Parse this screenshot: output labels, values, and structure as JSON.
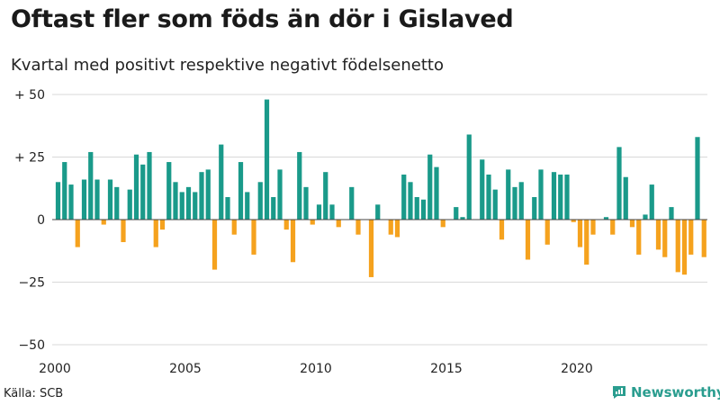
{
  "title": "Oftast fler som föds än dör i Gislaved",
  "subtitle": "Kvartal med positivt respektive negativt födelsenetto",
  "source": "Källa: SCB",
  "brand": "Newsworthy",
  "colors": {
    "positive": "#1a9a8a",
    "negative": "#f5a21e",
    "grid": "#d9d9d9",
    "baseline": "#444444"
  },
  "chart_data": {
    "type": "bar",
    "title": "Oftast fler som föds än dör i Gislaved",
    "subtitle": "Kvartal med positivt respektive negativt födelsenetto",
    "xlabel": "",
    "ylabel": "",
    "ylim": [
      -50,
      50
    ],
    "yticks": [
      {
        "value": 50,
        "label": "+ 50"
      },
      {
        "value": 25,
        "label": "+ 25"
      },
      {
        "value": 0,
        "label": "0"
      },
      {
        "value": -25,
        "label": "−25"
      },
      {
        "value": -50,
        "label": "−50"
      }
    ],
    "xticks": [
      "2000",
      "2005",
      "2010",
      "2015",
      "2020"
    ],
    "grid": true,
    "categories": [
      "2000 Q1",
      "2000 Q2",
      "2000 Q3",
      "2000 Q4",
      "2001 Q1",
      "2001 Q2",
      "2001 Q3",
      "2001 Q4",
      "2002 Q1",
      "2002 Q2",
      "2002 Q3",
      "2002 Q4",
      "2003 Q1",
      "2003 Q2",
      "2003 Q3",
      "2003 Q4",
      "2004 Q1",
      "2004 Q2",
      "2004 Q3",
      "2004 Q4",
      "2005 Q1",
      "2005 Q2",
      "2005 Q3",
      "2005 Q4",
      "2006 Q1",
      "2006 Q2",
      "2006 Q3",
      "2006 Q4",
      "2007 Q1",
      "2007 Q2",
      "2007 Q3",
      "2007 Q4",
      "2008 Q1",
      "2008 Q2",
      "2008 Q3",
      "2008 Q4",
      "2009 Q1",
      "2009 Q2",
      "2009 Q3",
      "2009 Q4",
      "2010 Q1",
      "2010 Q2",
      "2010 Q3",
      "2010 Q4",
      "2011 Q1",
      "2011 Q2",
      "2011 Q3",
      "2011 Q4",
      "2012 Q1",
      "2012 Q2",
      "2012 Q3",
      "2012 Q4",
      "2013 Q1",
      "2013 Q2",
      "2013 Q3",
      "2013 Q4",
      "2014 Q1",
      "2014 Q2",
      "2014 Q3",
      "2014 Q4",
      "2015 Q1",
      "2015 Q2",
      "2015 Q3",
      "2015 Q4",
      "2016 Q1",
      "2016 Q2",
      "2016 Q3",
      "2016 Q4",
      "2017 Q1",
      "2017 Q2",
      "2017 Q3",
      "2017 Q4",
      "2018 Q1",
      "2018 Q2",
      "2018 Q3",
      "2018 Q4",
      "2019 Q1",
      "2019 Q2",
      "2019 Q3",
      "2019 Q4",
      "2020 Q1",
      "2020 Q2",
      "2020 Q3",
      "2020 Q4",
      "2021 Q1",
      "2021 Q2",
      "2021 Q3",
      "2021 Q4",
      "2022 Q1",
      "2022 Q2",
      "2022 Q3",
      "2022 Q4",
      "2023 Q1",
      "2023 Q2",
      "2023 Q3",
      "2023 Q4",
      "2024 Q1",
      "2024 Q2",
      "2024 Q3",
      "2024 Q4"
    ],
    "values": [
      15,
      23,
      14,
      -11,
      16,
      27,
      16,
      -2,
      16,
      13,
      -9,
      12,
      26,
      22,
      27,
      -11,
      -4,
      23,
      15,
      11,
      13,
      11,
      19,
      20,
      -20,
      30,
      9,
      -6,
      23,
      11,
      -14,
      15,
      48,
      9,
      20,
      -4,
      -17,
      27,
      13,
      -2,
      6,
      19,
      6,
      -3,
      0,
      13,
      -6,
      0,
      -23,
      6,
      0,
      -6,
      -7,
      18,
      15,
      9,
      8,
      26,
      21,
      -3,
      0,
      5,
      1,
      34,
      0,
      24,
      18,
      12,
      -8,
      20,
      13,
      15,
      -16,
      9,
      20,
      -10,
      19,
      18,
      18,
      -1,
      -11,
      -18,
      -6,
      0,
      1,
      -6,
      29,
      17,
      -3,
      -14,
      2,
      14,
      -12,
      -15,
      5,
      -21,
      -22,
      -14,
      33,
      -15
    ]
  }
}
